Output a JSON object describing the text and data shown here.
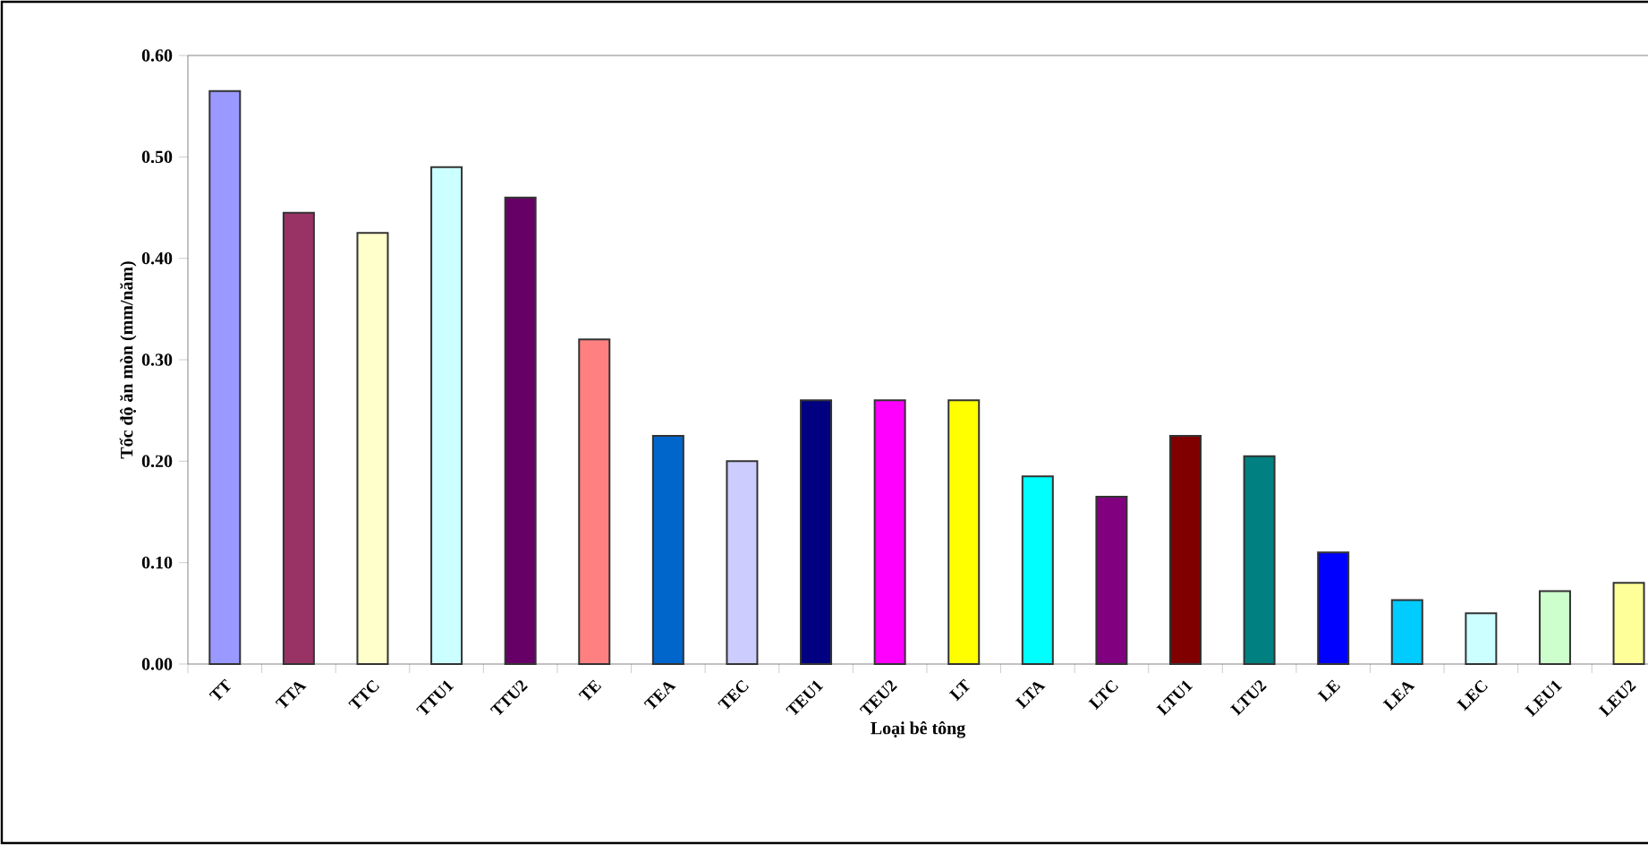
{
  "chart_data": {
    "type": "bar",
    "xlabel": "Loại bê tông",
    "ylabel": "Tốc độ ăn mòn (mm/năm)",
    "categories": [
      "TT",
      "TTA",
      "TTC",
      "TTU1",
      "TTU2",
      "TE",
      "TEA",
      "TEC",
      "TEU1",
      "TEU2",
      "LT",
      "LTA",
      "LTC",
      "LTU1",
      "LTU2",
      "LE",
      "LEA",
      "LEC",
      "LEU1",
      "LEU2"
    ],
    "values": [
      0.565,
      0.445,
      0.425,
      0.49,
      0.46,
      0.32,
      0.225,
      0.2,
      0.26,
      0.26,
      0.26,
      0.185,
      0.165,
      0.225,
      0.205,
      0.11,
      0.063,
      0.05,
      0.072,
      0.08
    ],
    "colors": [
      "#9999ff",
      "#993366",
      "#ffffcc",
      "#ccffff",
      "#660066",
      "#ff8080",
      "#0066cc",
      "#ccccff",
      "#000080",
      "#ff00ff",
      "#ffff00",
      "#00ffff",
      "#800080",
      "#800000",
      "#008080",
      "#0000ff",
      "#00ccff",
      "#ccffff",
      "#ccffcc",
      "#ffff99"
    ],
    "ylim": [
      0,
      0.6
    ],
    "yticks": [
      {
        "value": 0,
        "label": "0.00"
      },
      {
        "value": 0.1,
        "label": "0.10"
      },
      {
        "value": 0.2,
        "label": "0.20"
      },
      {
        "value": 0.3,
        "label": "0.30"
      },
      {
        "value": 0.4,
        "label": "0.40"
      },
      {
        "value": 0.5,
        "label": "0.50"
      },
      {
        "value": 0.6,
        "label": "0.60"
      }
    ],
    "grid": false
  }
}
